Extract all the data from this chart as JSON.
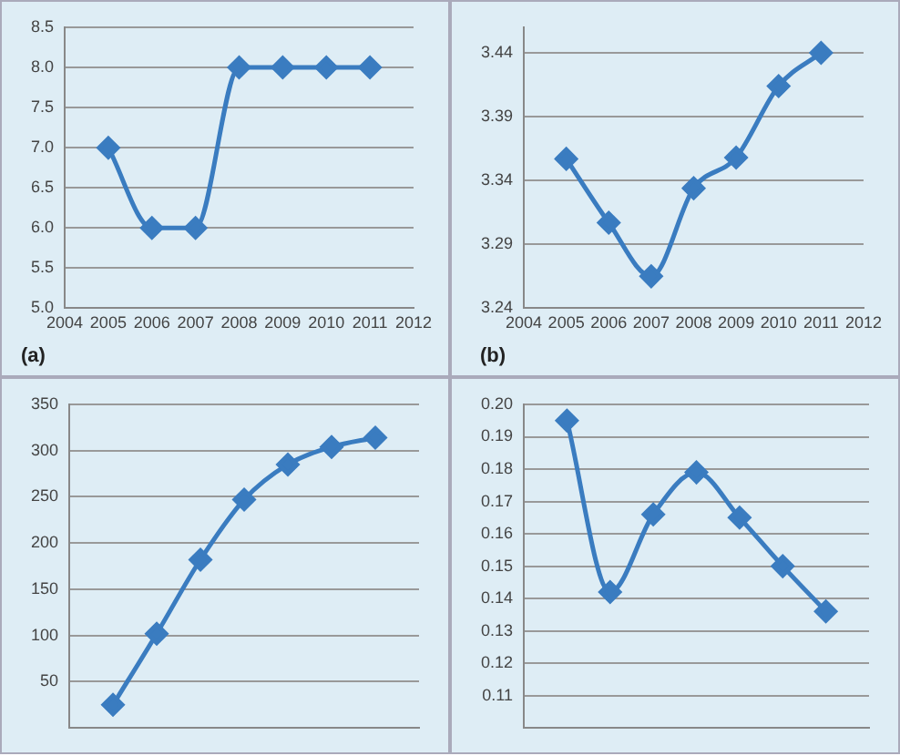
{
  "chart_data": [
    {
      "type": "line",
      "x": [
        2005,
        2006,
        2007,
        2008,
        2009,
        2010,
        2011
      ],
      "values": [
        7,
        6,
        6,
        8,
        8,
        8,
        8
      ],
      "color": "#3a7cc0",
      "xlim": [
        2004,
        2012
      ],
      "xticks": [
        2004,
        2005,
        2006,
        2007,
        2008,
        2009,
        2010,
        2011,
        2012
      ],
      "ylim": [
        5,
        8.5
      ],
      "yticks": [
        {
          "value": 5,
          "label": "5.0"
        },
        5.5,
        {
          "value": 6,
          "label": "6.0"
        },
        6.5,
        {
          "value": 7,
          "label": "7.0"
        },
        7.5,
        {
          "value": 8,
          "label": "8.0"
        },
        8.5
      ],
      "grid": "y",
      "marker": "diamond",
      "annotations": [
        "(a)"
      ]
    },
    {
      "type": "line",
      "x": [
        2005,
        2006,
        2007,
        2008,
        2009,
        2010,
        2011
      ],
      "values": [
        3.357,
        3.307,
        3.265,
        3.334,
        3.358,
        3.414,
        3.44
      ],
      "color": "#3a7cc0",
      "xlim": [
        2004,
        2012
      ],
      "xticks": [
        2004,
        2005,
        2006,
        2007,
        2008,
        2009,
        2010,
        2011,
        2012
      ],
      "ylim": [
        3.24,
        3.46
      ],
      "yticks": [
        3.24,
        3.29,
        3.34,
        3.39,
        3.44
      ],
      "grid": "y",
      "marker": "diamond",
      "annotations": [
        "(b)"
      ]
    },
    {
      "type": "line",
      "x": [
        2005,
        2006,
        2007,
        2008,
        2009,
        2010,
        2011
      ],
      "values": [
        25,
        102,
        182,
        247,
        285,
        304,
        314
      ],
      "color": "#3a7cc0",
      "xlim": [
        2004,
        2012
      ],
      "ylim": [
        0,
        350
      ],
      "yticks": [
        50,
        100,
        150,
        200,
        250,
        300,
        350
      ],
      "grid": "y",
      "marker": "diamond",
      "tick_labels": "y"
    },
    {
      "type": "line",
      "x": [
        2005,
        2006,
        2007,
        2008,
        2009,
        2010,
        2011
      ],
      "values": [
        0.195,
        0.142,
        0.166,
        0.179,
        0.165,
        0.15,
        0.136
      ],
      "color": "#3a7cc0",
      "xlim": [
        2004,
        2012
      ],
      "ylim": [
        0.1,
        0.2
      ],
      "yticks": [
        0.11,
        0.12,
        0.13,
        0.14,
        0.15,
        0.16,
        0.17,
        0.18,
        0.19,
        {
          "value": 0.2,
          "label": "0.20"
        }
      ],
      "grid": "y",
      "marker": "diamond",
      "tick_labels": "y"
    }
  ]
}
